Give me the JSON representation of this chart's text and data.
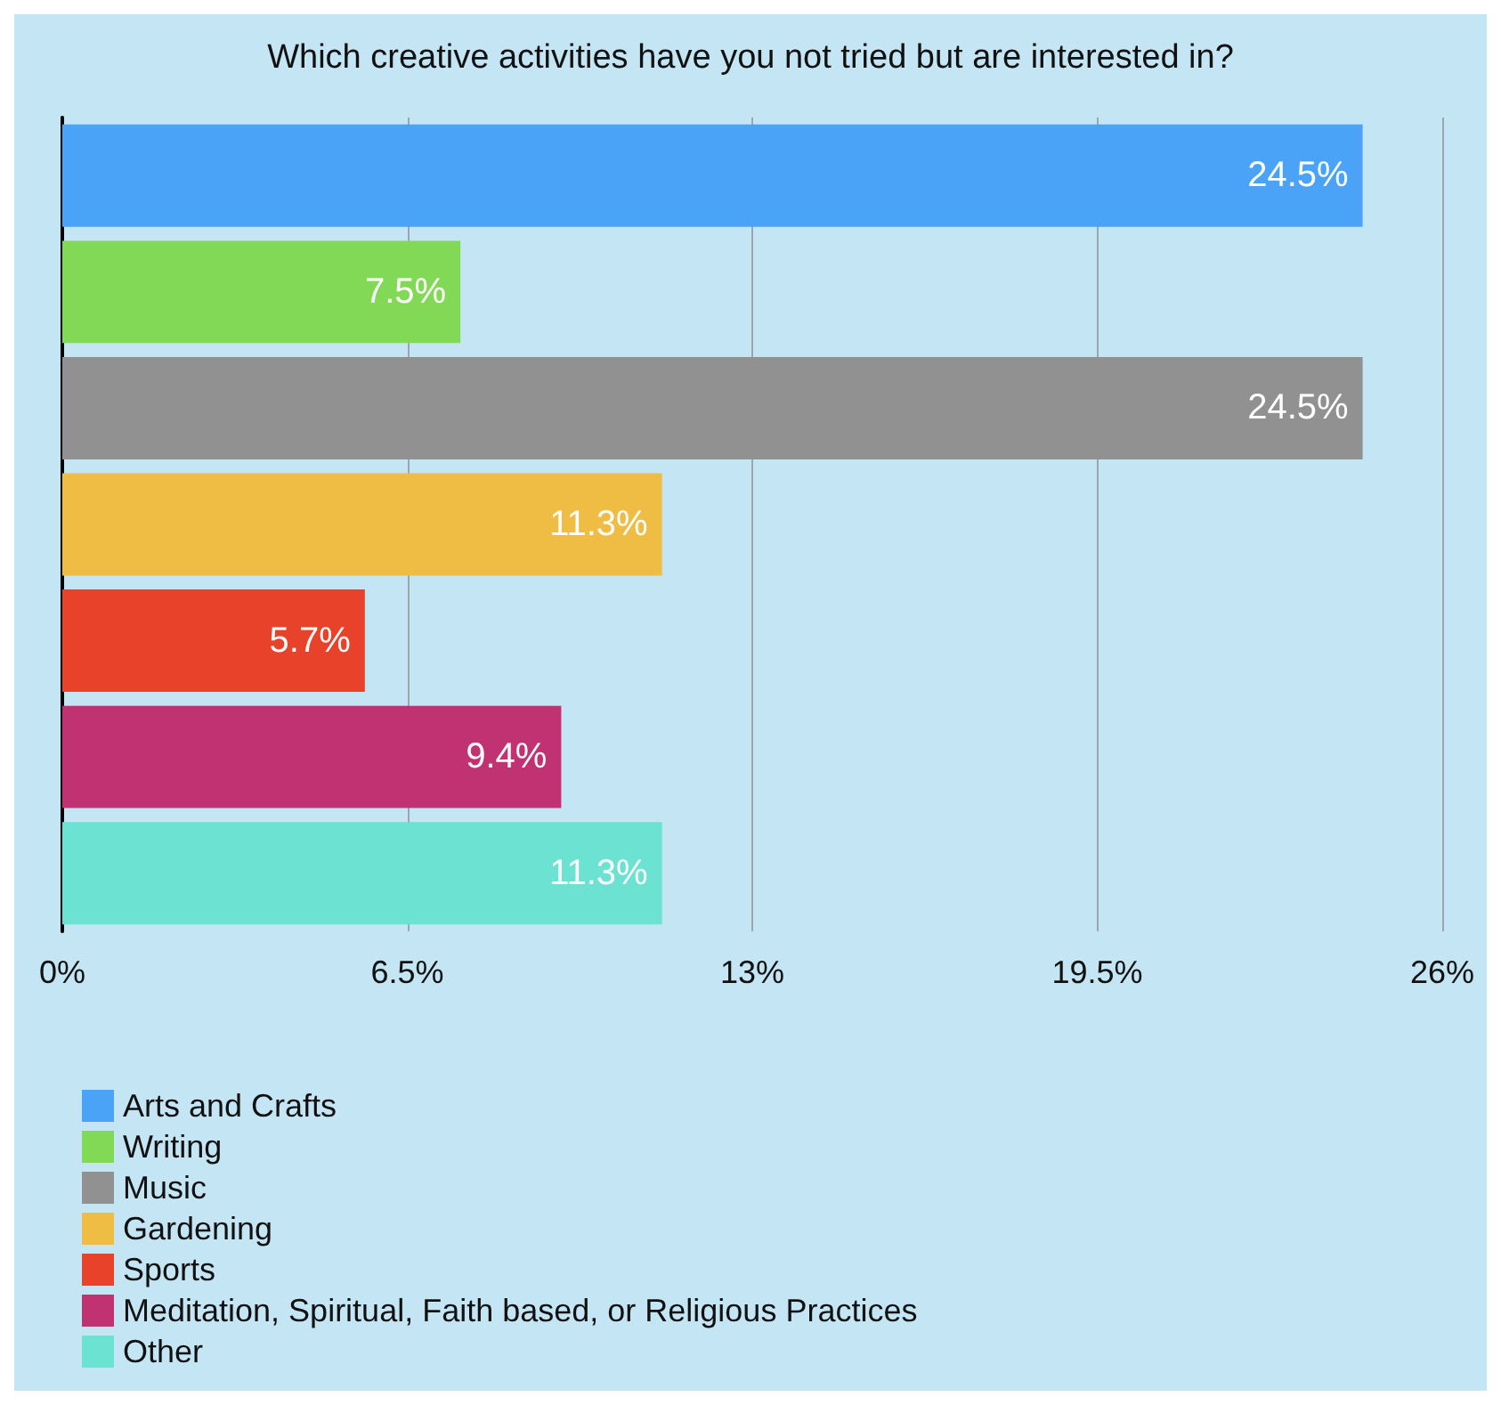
{
  "chart_data": {
    "type": "bar",
    "orientation": "horizontal",
    "title": "Which creative activities have you not tried but are interested in?",
    "categories": [
      null,
      null,
      null,
      null,
      null,
      null,
      null
    ],
    "series": [
      {
        "name": "Arts and Crafts",
        "color": "#4aa3f7",
        "values": [
          24.5,
          null,
          null,
          null,
          null,
          null,
          null
        ],
        "value_labels": [
          "24.5%",
          null,
          null,
          null,
          null,
          null,
          null
        ]
      },
      {
        "name": "Writing",
        "color": "#82d955",
        "values": [
          null,
          7.5,
          null,
          null,
          null,
          null,
          null
        ],
        "value_labels": [
          null,
          "7.5%",
          null,
          null,
          null,
          null,
          null
        ]
      },
      {
        "name": "Music",
        "color": "#919191",
        "values": [
          null,
          null,
          24.5,
          null,
          null,
          null,
          null
        ],
        "value_labels": [
          null,
          null,
          "24.5%",
          null,
          null,
          null,
          null
        ]
      },
      {
        "name": "Gardening",
        "color": "#efbc44",
        "values": [
          null,
          null,
          null,
          11.3,
          null,
          null,
          null
        ],
        "value_labels": [
          null,
          null,
          null,
          "11.3%",
          null,
          null,
          null
        ]
      },
      {
        "name": "Sports",
        "color": "#e8432a",
        "values": [
          null,
          null,
          null,
          null,
          5.7,
          null,
          null
        ],
        "value_labels": [
          null,
          null,
          null,
          null,
          "5.7%",
          null,
          null
        ]
      },
      {
        "name": "Meditation, Spiritual, Faith based, or Religious Practices",
        "color": "#c13272",
        "values": [
          null,
          null,
          null,
          null,
          null,
          9.4,
          null
        ],
        "value_labels": [
          null,
          null,
          null,
          null,
          null,
          "9.4%",
          null
        ]
      },
      {
        "name": "Other",
        "color": "#6be2d2",
        "values": [
          null,
          null,
          null,
          null,
          null,
          null,
          11.3
        ],
        "value_labels": [
          null,
          null,
          null,
          null,
          null,
          null,
          "11.3%"
        ]
      }
    ],
    "xlim": [
      0,
      26
    ],
    "xticks": [
      {
        "value": 0,
        "label": "0%"
      },
      {
        "value": 6.5,
        "label": "6.5%"
      },
      {
        "value": 13,
        "label": "13%"
      },
      {
        "value": 19.5,
        "label": "19.5%"
      },
      {
        "value": 26,
        "label": "26%"
      }
    ],
    "grid": "x",
    "legend": "bottom left"
  }
}
